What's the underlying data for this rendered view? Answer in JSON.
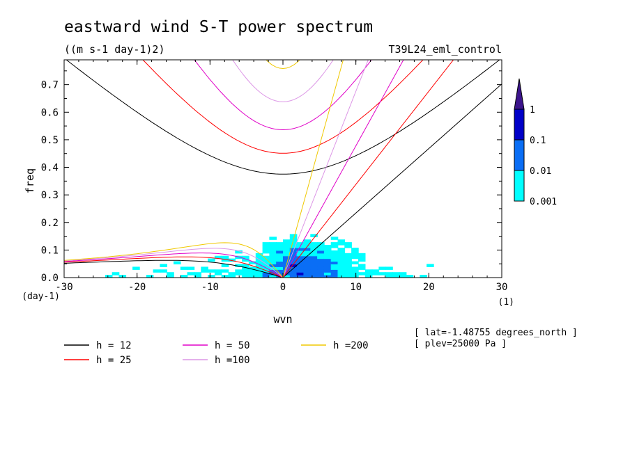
{
  "title": "eastward wind S-T power spectrum",
  "units": "((m s-1 day-1)2)",
  "run_name": "T39L24_eml_control",
  "info": [
    "[ lat=-1.48755 degrees_north ]",
    "[ plev=25000 Pa ]"
  ],
  "chart_data": {
    "type": "heatmap",
    "xlabel": "wvn",
    "ylabel": "freq",
    "x_unit": "(1)",
    "y_unit": "(day-1)",
    "xlim": [
      -30,
      30
    ],
    "ylim": [
      0,
      0.79
    ],
    "x_ticks": [
      -30,
      -20,
      -10,
      0,
      10,
      20,
      30
    ],
    "x_tick_labels": [
      "-30",
      "-20",
      "-10",
      "0",
      "10",
      "20",
      "30"
    ],
    "y_ticks": [
      0,
      0.1,
      0.2,
      0.3,
      0.4,
      0.5,
      0.6,
      0.7
    ],
    "y_tick_labels": [
      "0.0",
      "0.1",
      "0.2",
      "0.3",
      "0.4",
      "0.5",
      "0.6",
      "0.7"
    ],
    "colorbar": {
      "levels": [
        0.001,
        0.01,
        0.1,
        1
      ],
      "labels": [
        "0.001",
        "0.01",
        "0.1",
        "1"
      ],
      "colors": [
        "#00ffff",
        "#0a6ef5",
        "#0000c8",
        "#3c148c"
      ]
    },
    "dispersion_curves": [
      {
        "label": "h = 12",
        "h": 12,
        "color": "#000000"
      },
      {
        "label": "h = 25",
        "h": 25,
        "color": "#ff0000"
      },
      {
        "label": "h = 50",
        "h": 50,
        "color": "#e000c8"
      },
      {
        "label": "h =100",
        "h": 100,
        "color": "#dc96e6"
      },
      {
        "label": "h =200",
        "h": 200,
        "color": "#f0c800"
      }
    ]
  }
}
